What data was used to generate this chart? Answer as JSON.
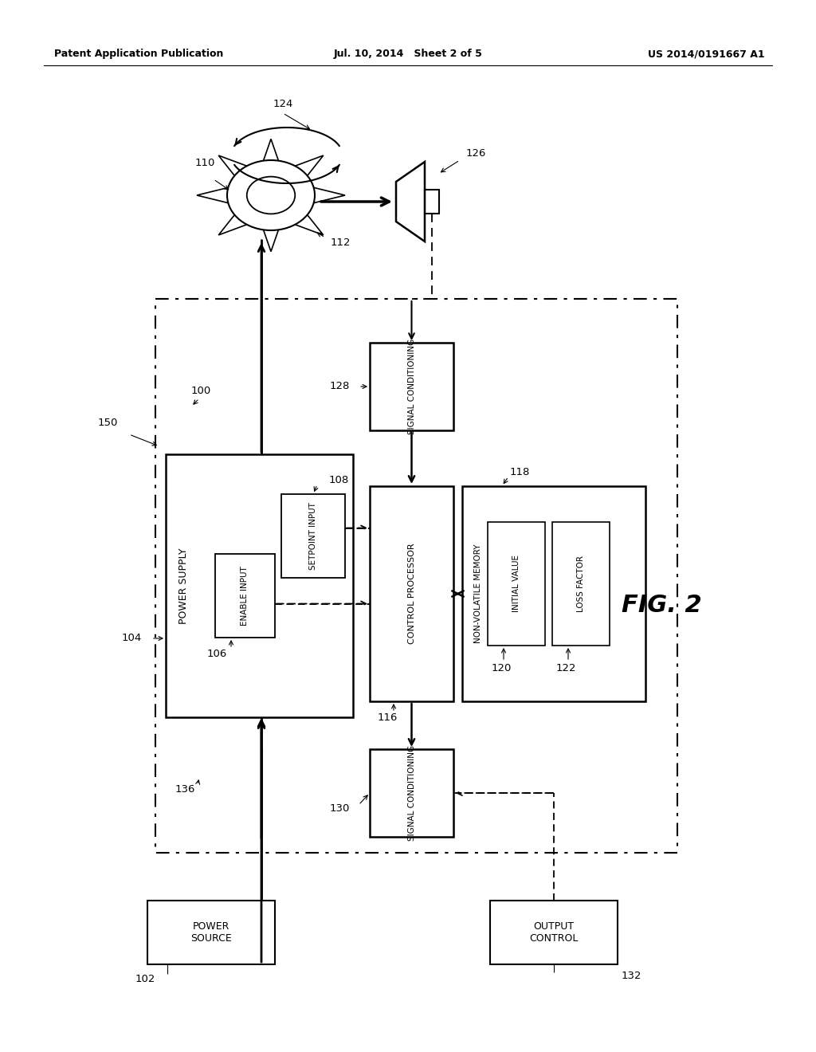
{
  "bg_color": "#ffffff",
  "header_left": "Patent Application Publication",
  "header_center": "Jul. 10, 2014   Sheet 2 of 5",
  "header_right": "US 2014/0191667 A1",
  "fig_label": "FIG. 2"
}
